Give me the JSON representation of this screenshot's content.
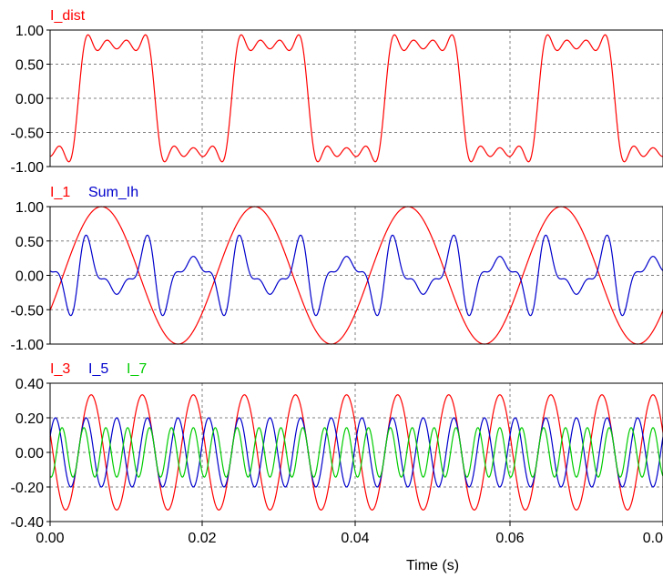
{
  "chart_data": [
    {
      "type": "line",
      "xlim": [
        0.0,
        0.08
      ],
      "ylim": [
        -1.0,
        1.0
      ],
      "y_ticks": [
        "1.00",
        "0.50",
        "0.00",
        "-0.50",
        "-1.00"
      ],
      "grid": true,
      "period_s": 0.02,
      "series": [
        {
          "name": "I_dist",
          "color": "#ff0000",
          "harmonics": [
            {
              "order": 1,
              "amplitude": 1.0,
              "phase": "sine"
            },
            {
              "order": 3,
              "amplitude": 0.333,
              "phase": "sine"
            },
            {
              "order": 5,
              "amplitude": 0.2,
              "phase": "sine"
            },
            {
              "order": 7,
              "amplitude": 0.143,
              "phase": "sine"
            }
          ],
          "offset_s": 0.0037
        }
      ]
    },
    {
      "type": "line",
      "xlim": [
        0.0,
        0.08
      ],
      "ylim": [
        -1.0,
        1.0
      ],
      "y_ticks": [
        "1.00",
        "0.50",
        "0.00",
        "-0.50",
        "-1.00"
      ],
      "grid": true,
      "series": [
        {
          "name": "I_1",
          "color": "#ff0000",
          "harmonics": [
            {
              "order": 1,
              "amplitude": 1.0,
              "phase": "sine"
            }
          ],
          "offset_s": 0.0017
        },
        {
          "name": "Sum_Ih",
          "color": "#0000cc",
          "harmonics": [
            {
              "order": 3,
              "amplitude": 0.333,
              "phase": "sine"
            },
            {
              "order": 5,
              "amplitude": 0.2,
              "phase": "sine"
            },
            {
              "order": 7,
              "amplitude": 0.143,
              "phase": "sine"
            }
          ],
          "offset_s": 0.0037
        }
      ]
    },
    {
      "type": "line",
      "xlim": [
        0.0,
        0.08
      ],
      "ylim": [
        -0.4,
        0.4
      ],
      "y_ticks": [
        "0.40",
        "0.20",
        "0.00",
        "-0.20",
        "-0.40"
      ],
      "grid": true,
      "series": [
        {
          "name": "I_3",
          "color": "#ff0000",
          "harmonics": [
            {
              "order": 3,
              "amplitude": 0.333,
              "phase": "sine"
            }
          ],
          "offset_s": 0.0037
        },
        {
          "name": "I_5",
          "color": "#0000cc",
          "harmonics": [
            {
              "order": 5,
              "amplitude": 0.2,
              "phase": "sine"
            }
          ],
          "offset_s": 0.0037
        },
        {
          "name": "I_7",
          "color": "#00cc00",
          "harmonics": [
            {
              "order": 7,
              "amplitude": 0.143,
              "phase": "sine"
            }
          ],
          "offset_s": 0.0037
        }
      ]
    }
  ],
  "x_axis": {
    "label": "Time (s)",
    "ticks": [
      "0.00",
      "0.02",
      "0.04",
      "0.06",
      "0.0"
    ]
  }
}
